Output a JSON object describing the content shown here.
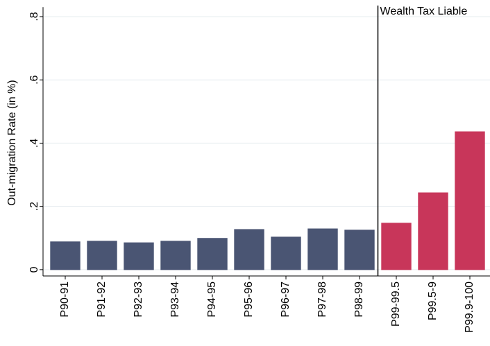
{
  "chart_data": {
    "type": "bar",
    "y_label": "Out-migration Rate (in %)",
    "categories": [
      "P90-91",
      "P91-92",
      "P92-93",
      "P93-94",
      "P94-95",
      "P95-96",
      "P96-97",
      "P97-98",
      "P98-99",
      "P99-99.5",
      "P99.5-9",
      "P99.9-100"
    ],
    "values": [
      0.088,
      0.09,
      0.085,
      0.09,
      0.099,
      0.127,
      0.103,
      0.129,
      0.125,
      0.147,
      0.243,
      0.436
    ],
    "colors": [
      "#4a5573",
      "#4a5573",
      "#4a5573",
      "#4a5573",
      "#4a5573",
      "#4a5573",
      "#4a5573",
      "#4a5573",
      "#4a5573",
      "#c8365a",
      "#c8365a",
      "#c8365a"
    ],
    "annotation": "Wealth Tax Liable",
    "divider_after": "P98-99",
    "ylim": [
      -0.02,
      0.83
    ],
    "yticks": [
      0,
      {
        "value": 0.2,
        "label": ".2"
      },
      {
        "value": 0.4,
        "label": ".4"
      },
      {
        "value": 0.6,
        "label": ".6"
      },
      {
        "value": 0.8,
        "label": ".8"
      }
    ],
    "grid": true
  }
}
